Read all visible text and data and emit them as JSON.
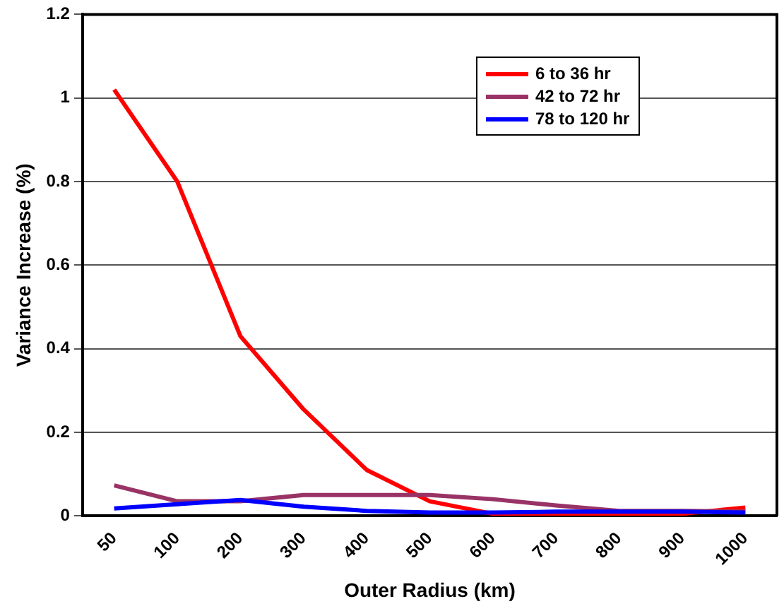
{
  "chart_data": {
    "type": "line",
    "xlabel": "Outer Radius (km)",
    "ylabel": "Variance Increase (%)",
    "categories": [
      "50",
      "100",
      "200",
      "300",
      "400",
      "500",
      "600",
      "700",
      "800",
      "900",
      "1000"
    ],
    "series": [
      {
        "name": "6 to 36 hr",
        "color": "#ff0000",
        "values": [
          1.02,
          0.8,
          0.43,
          0.255,
          0.11,
          0.035,
          0.005,
          0.005,
          0.005,
          0.005,
          0.02
        ]
      },
      {
        "name": "42 to 72 hr",
        "color": "#993366",
        "values": [
          0.073,
          0.035,
          0.035,
          0.05,
          0.05,
          0.05,
          0.04,
          0.025,
          0.012,
          0.012,
          0.01
        ]
      },
      {
        "name": "78 to 120 hr",
        "color": "#0000ff",
        "values": [
          0.018,
          0.028,
          0.038,
          0.022,
          0.012,
          0.008,
          0.008,
          0.01,
          0.01,
          0.01,
          0.008
        ]
      }
    ],
    "ylim": [
      0,
      1.2
    ],
    "yticks": [
      0,
      0.2,
      0.4,
      0.6,
      0.8,
      1,
      1.2
    ],
    "grid": "y",
    "legend": "top right",
    "marker": "none",
    "line_style": "solid"
  }
}
